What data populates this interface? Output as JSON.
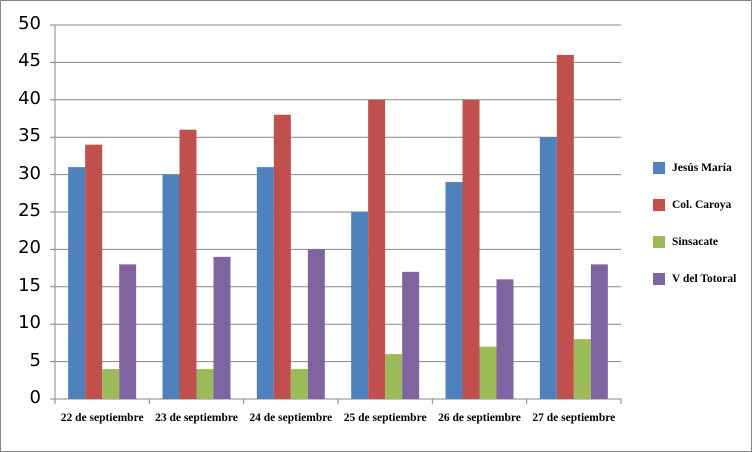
{
  "chart_data": {
    "type": "bar",
    "title": "",
    "xlabel": "",
    "ylabel": "",
    "ylim": [
      0,
      50
    ],
    "yticks": [
      0,
      5,
      10,
      15,
      20,
      25,
      30,
      35,
      40,
      45,
      50
    ],
    "grid": true,
    "legend_position": "right",
    "categories": [
      "22 de septiembre",
      "23 de septiembre",
      "24 de septiembre",
      "25 de septiembre",
      "26 de septiembre",
      "27 de septiembre"
    ],
    "series": [
      {
        "name": "Jesús María",
        "color": "#4F81BD",
        "values": [
          31,
          30,
          31,
          25,
          29,
          35
        ]
      },
      {
        "name": "Col. Caroya",
        "color": "#C0504D",
        "values": [
          34,
          36,
          38,
          40,
          40,
          46
        ]
      },
      {
        "name": "Sinsacate",
        "color": "#9BBB59",
        "values": [
          4,
          4,
          4,
          6,
          7,
          8
        ]
      },
      {
        "name": "V del Totoral",
        "color": "#8064A2",
        "values": [
          18,
          19,
          20,
          17,
          16,
          18
        ]
      }
    ]
  }
}
